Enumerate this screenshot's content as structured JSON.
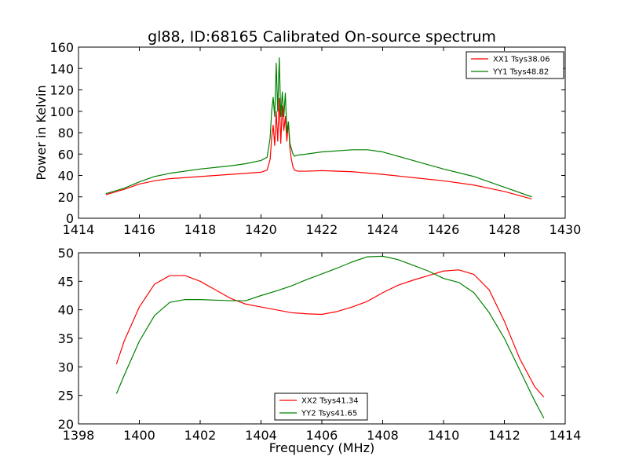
{
  "chart_data": [
    {
      "type": "line",
      "title": "gl88, ID:68165 Calibrated On-source spectrum",
      "xlabel": "",
      "ylabel": "Power in Kelvin",
      "xlim": [
        1414,
        1430
      ],
      "ylim": [
        0,
        160
      ],
      "xticks": [
        "1414",
        "1416",
        "1418",
        "1420",
        "1422",
        "1424",
        "1426",
        "1428",
        "1430"
      ],
      "yticks": [
        "0",
        "20",
        "40",
        "60",
        "80",
        "100",
        "120",
        "140",
        "160"
      ],
      "grid": false,
      "legend_position": "top-right",
      "series": [
        {
          "name": "XX1 Tsys38.06",
          "color": "#ff0000",
          "x": [
            14.9,
            15.5,
            16.0,
            16.5,
            17.0,
            18.0,
            19.0,
            19.5,
            20.0,
            20.2,
            20.3,
            20.35,
            20.4,
            20.45,
            20.5,
            20.55,
            20.6,
            20.65,
            20.7,
            20.75,
            20.8,
            20.85,
            20.9,
            20.95,
            21.0,
            21.05,
            21.1,
            21.2,
            21.5,
            22.0,
            23.0,
            24.0,
            25.0,
            26.0,
            27.0,
            28.0,
            28.9
          ],
          "y": [
            22,
            27,
            32,
            35,
            37,
            39,
            41,
            42,
            43,
            45,
            55,
            75,
            87,
            68,
            100,
            72,
            112,
            70,
            105,
            82,
            95,
            72,
            90,
            65,
            55,
            48,
            45,
            44,
            44,
            44.5,
            43.5,
            41,
            38,
            35,
            31,
            25,
            18
          ]
        },
        {
          "name": "YY1 Tsys48.82",
          "color": "#008000",
          "x": [
            14.9,
            15.5,
            16.0,
            16.5,
            17.0,
            18.0,
            19.0,
            19.5,
            20.0,
            20.2,
            20.3,
            20.35,
            20.4,
            20.45,
            20.5,
            20.55,
            20.6,
            20.65,
            20.7,
            20.75,
            20.8,
            20.85,
            20.9,
            20.95,
            21.0,
            21.05,
            21.1,
            21.2,
            21.5,
            22.0,
            23.0,
            23.5,
            24.0,
            25.0,
            26.0,
            27.0,
            28.0,
            28.9
          ],
          "y": [
            23,
            28,
            34,
            39,
            42,
            46,
            49,
            51,
            54,
            57,
            75,
            100,
            113,
            95,
            145,
            100,
            150,
            95,
            118,
            95,
            117,
            80,
            90,
            70,
            65,
            60,
            58,
            59,
            60,
            62,
            64,
            64,
            62,
            54,
            46,
            39,
            29,
            20
          ]
        }
      ]
    },
    {
      "type": "line",
      "title": "",
      "xlabel": "Frequency (MHz)",
      "ylabel": "",
      "xlim": [
        1398,
        1414
      ],
      "ylim": [
        20,
        50
      ],
      "xticks": [
        "1398",
        "1400",
        "1402",
        "1404",
        "1406",
        "1408",
        "1410",
        "1412",
        "1414"
      ],
      "yticks": [
        "20",
        "25",
        "30",
        "35",
        "40",
        "45",
        "50"
      ],
      "grid": false,
      "legend_position": "bottom-center",
      "series": [
        {
          "name": "XX2 Tsys41.34",
          "color": "#ff0000",
          "x": [
            1399.25,
            1399.5,
            1400.0,
            1400.5,
            1401.0,
            1401.5,
            1402.0,
            1402.5,
            1403.0,
            1403.5,
            1404.0,
            1404.5,
            1405.0,
            1405.5,
            1406.0,
            1406.5,
            1407.0,
            1407.5,
            1408.0,
            1408.5,
            1409.0,
            1409.5,
            1410.0,
            1410.5,
            1411.0,
            1411.5,
            1412.0,
            1412.5,
            1413.0,
            1413.3
          ],
          "y": [
            30.5,
            34.5,
            40.5,
            44.5,
            46.0,
            46.0,
            45.0,
            43.5,
            42.0,
            41.0,
            40.5,
            40.0,
            39.5,
            39.3,
            39.2,
            39.7,
            40.5,
            41.5,
            43.0,
            44.3,
            45.2,
            46.0,
            46.8,
            47.0,
            46.2,
            43.5,
            38.0,
            31.5,
            26.5,
            24.7
          ]
        },
        {
          "name": "YY2 Tsys41.65",
          "color": "#008000",
          "x": [
            1399.25,
            1399.5,
            1400.0,
            1400.5,
            1401.0,
            1401.5,
            1402.0,
            1402.5,
            1403.0,
            1403.5,
            1404.0,
            1404.5,
            1405.0,
            1405.5,
            1406.0,
            1406.5,
            1407.0,
            1407.5,
            1408.0,
            1408.5,
            1409.0,
            1409.5,
            1410.0,
            1410.5,
            1411.0,
            1411.5,
            1412.0,
            1412.5,
            1413.0,
            1413.3
          ],
          "y": [
            25.3,
            28.5,
            34.5,
            39.0,
            41.3,
            41.8,
            41.8,
            41.7,
            41.6,
            41.6,
            42.5,
            43.3,
            44.2,
            45.3,
            46.3,
            47.3,
            48.4,
            49.3,
            49.4,
            48.8,
            47.8,
            46.8,
            45.5,
            44.8,
            43.0,
            39.5,
            35.0,
            29.5,
            24.0,
            21.0
          ]
        }
      ]
    }
  ]
}
